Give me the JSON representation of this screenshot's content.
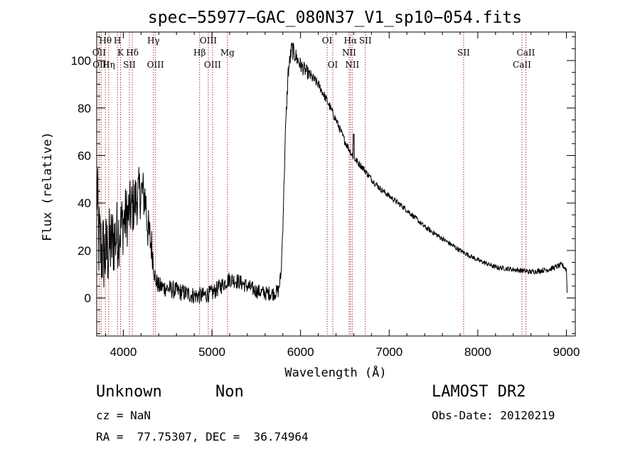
{
  "chart_data": {
    "type": "line",
    "title": "spec−55977−GAC_080N37_V1_sp10−054.fits",
    "xlabel": "Wavelength (Å)",
    "ylabel": "Flux (relative)",
    "xlim": [
      3700,
      9100
    ],
    "ylim": [
      -16,
      112
    ],
    "xticks": [
      4000,
      5000,
      6000,
      7000,
      8000,
      9000
    ],
    "yticks": [
      0,
      20,
      40,
      60,
      80,
      100
    ],
    "grid": false,
    "line_color": "#000000",
    "marker_color": "#b03030",
    "lines": [
      {
        "label": "Hθ",
        "wave": 3798,
        "row": 0
      },
      {
        "label": "OII",
        "wave": 3727,
        "row": 1
      },
      {
        "label": "OIII",
        "wave": 3750,
        "row": 2
      },
      {
        "label": "Hη",
        "wave": 3835,
        "row": 2
      },
      {
        "label": "H",
        "wave": 3934,
        "row": 0
      },
      {
        "label": "K",
        "wave": 3969,
        "row": 1
      },
      {
        "label": "Hδ",
        "wave": 4102,
        "row": 1
      },
      {
        "label": "SII",
        "wave": 4069,
        "row": 2
      },
      {
        "label": "Hγ",
        "wave": 4340,
        "row": 0
      },
      {
        "label": "OIII",
        "wave": 4363,
        "row": 2
      },
      {
        "label": "OIII",
        "wave": 4959,
        "row": 0
      },
      {
        "label": "Hβ",
        "wave": 4861,
        "row": 1
      },
      {
        "label": "OIII",
        "wave": 5007,
        "row": 2
      },
      {
        "label": "Mg",
        "wave": 5175,
        "row": 1
      },
      {
        "label": "OI",
        "wave": 6300,
        "row": 0
      },
      {
        "label": "OI",
        "wave": 6364,
        "row": 2
      },
      {
        "label": "Hα",
        "wave": 6563,
        "row": 0
      },
      {
        "label": "NII",
        "wave": 6548,
        "row": 1
      },
      {
        "label": "NII",
        "wave": 6583,
        "row": 2
      },
      {
        "label": "SII",
        "wave": 6731,
        "row": 0
      },
      {
        "label": "SII",
        "wave": 7840,
        "row": 1
      },
      {
        "label": "CaII",
        "wave": 8542,
        "row": 1
      },
      {
        "label": "CaII",
        "wave": 8498,
        "row": 2
      }
    ],
    "spectrum_anchors": [
      [
        3700,
        50
      ],
      [
        3720,
        25
      ],
      [
        3750,
        20
      ],
      [
        3800,
        18
      ],
      [
        3850,
        22
      ],
      [
        3900,
        25
      ],
      [
        3950,
        28
      ],
      [
        4000,
        32
      ],
      [
        4050,
        35
      ],
      [
        4100,
        38
      ],
      [
        4150,
        42
      ],
      [
        4200,
        45
      ],
      [
        4250,
        42
      ],
      [
        4280,
        28
      ],
      [
        4320,
        22
      ],
      [
        4360,
        8
      ],
      [
        4400,
        5
      ],
      [
        4500,
        4
      ],
      [
        4600,
        3
      ],
      [
        4700,
        2
      ],
      [
        4800,
        1
      ],
      [
        4900,
        1
      ],
      [
        5000,
        2
      ],
      [
        5100,
        5
      ],
      [
        5200,
        8
      ],
      [
        5300,
        7
      ],
      [
        5400,
        5
      ],
      [
        5500,
        3
      ],
      [
        5600,
        2
      ],
      [
        5700,
        2
      ],
      [
        5750,
        3
      ],
      [
        5780,
        10
      ],
      [
        5800,
        30
      ],
      [
        5830,
        70
      ],
      [
        5860,
        95
      ],
      [
        5900,
        105
      ],
      [
        6000,
        98
      ],
      [
        6100,
        94
      ],
      [
        6200,
        90
      ],
      [
        6300,
        83
      ],
      [
        6400,
        75
      ],
      [
        6500,
        66
      ],
      [
        6600,
        59
      ],
      [
        6700,
        55
      ],
      [
        6800,
        50
      ],
      [
        6900,
        46
      ],
      [
        7000,
        43
      ],
      [
        7200,
        37
      ],
      [
        7400,
        30
      ],
      [
        7600,
        25
      ],
      [
        7800,
        20
      ],
      [
        8000,
        16
      ],
      [
        8200,
        13
      ],
      [
        8400,
        12
      ],
      [
        8600,
        11
      ],
      [
        8800,
        12
      ],
      [
        8950,
        14
      ],
      [
        9000,
        12
      ],
      [
        9010,
        0
      ]
    ],
    "noise_amplitude": [
      [
        3700,
        20
      ],
      [
        4000,
        14
      ],
      [
        4300,
        10
      ],
      [
        4360,
        4
      ],
      [
        5800,
        3
      ],
      [
        5900,
        4
      ],
      [
        6200,
        2
      ],
      [
        7000,
        1.2
      ],
      [
        8000,
        1
      ],
      [
        9000,
        1.2
      ]
    ],
    "features": [
      {
        "wave": 6600,
        "value": 69
      }
    ]
  },
  "info": {
    "object_class": "Unknown",
    "subclass": "Non",
    "survey": "LAMOST DR2",
    "cz": "cz = NaN",
    "obs_date": "Obs-Date: 20120219",
    "coords": "RA =  77.75307, DEC =  36.74964"
  }
}
